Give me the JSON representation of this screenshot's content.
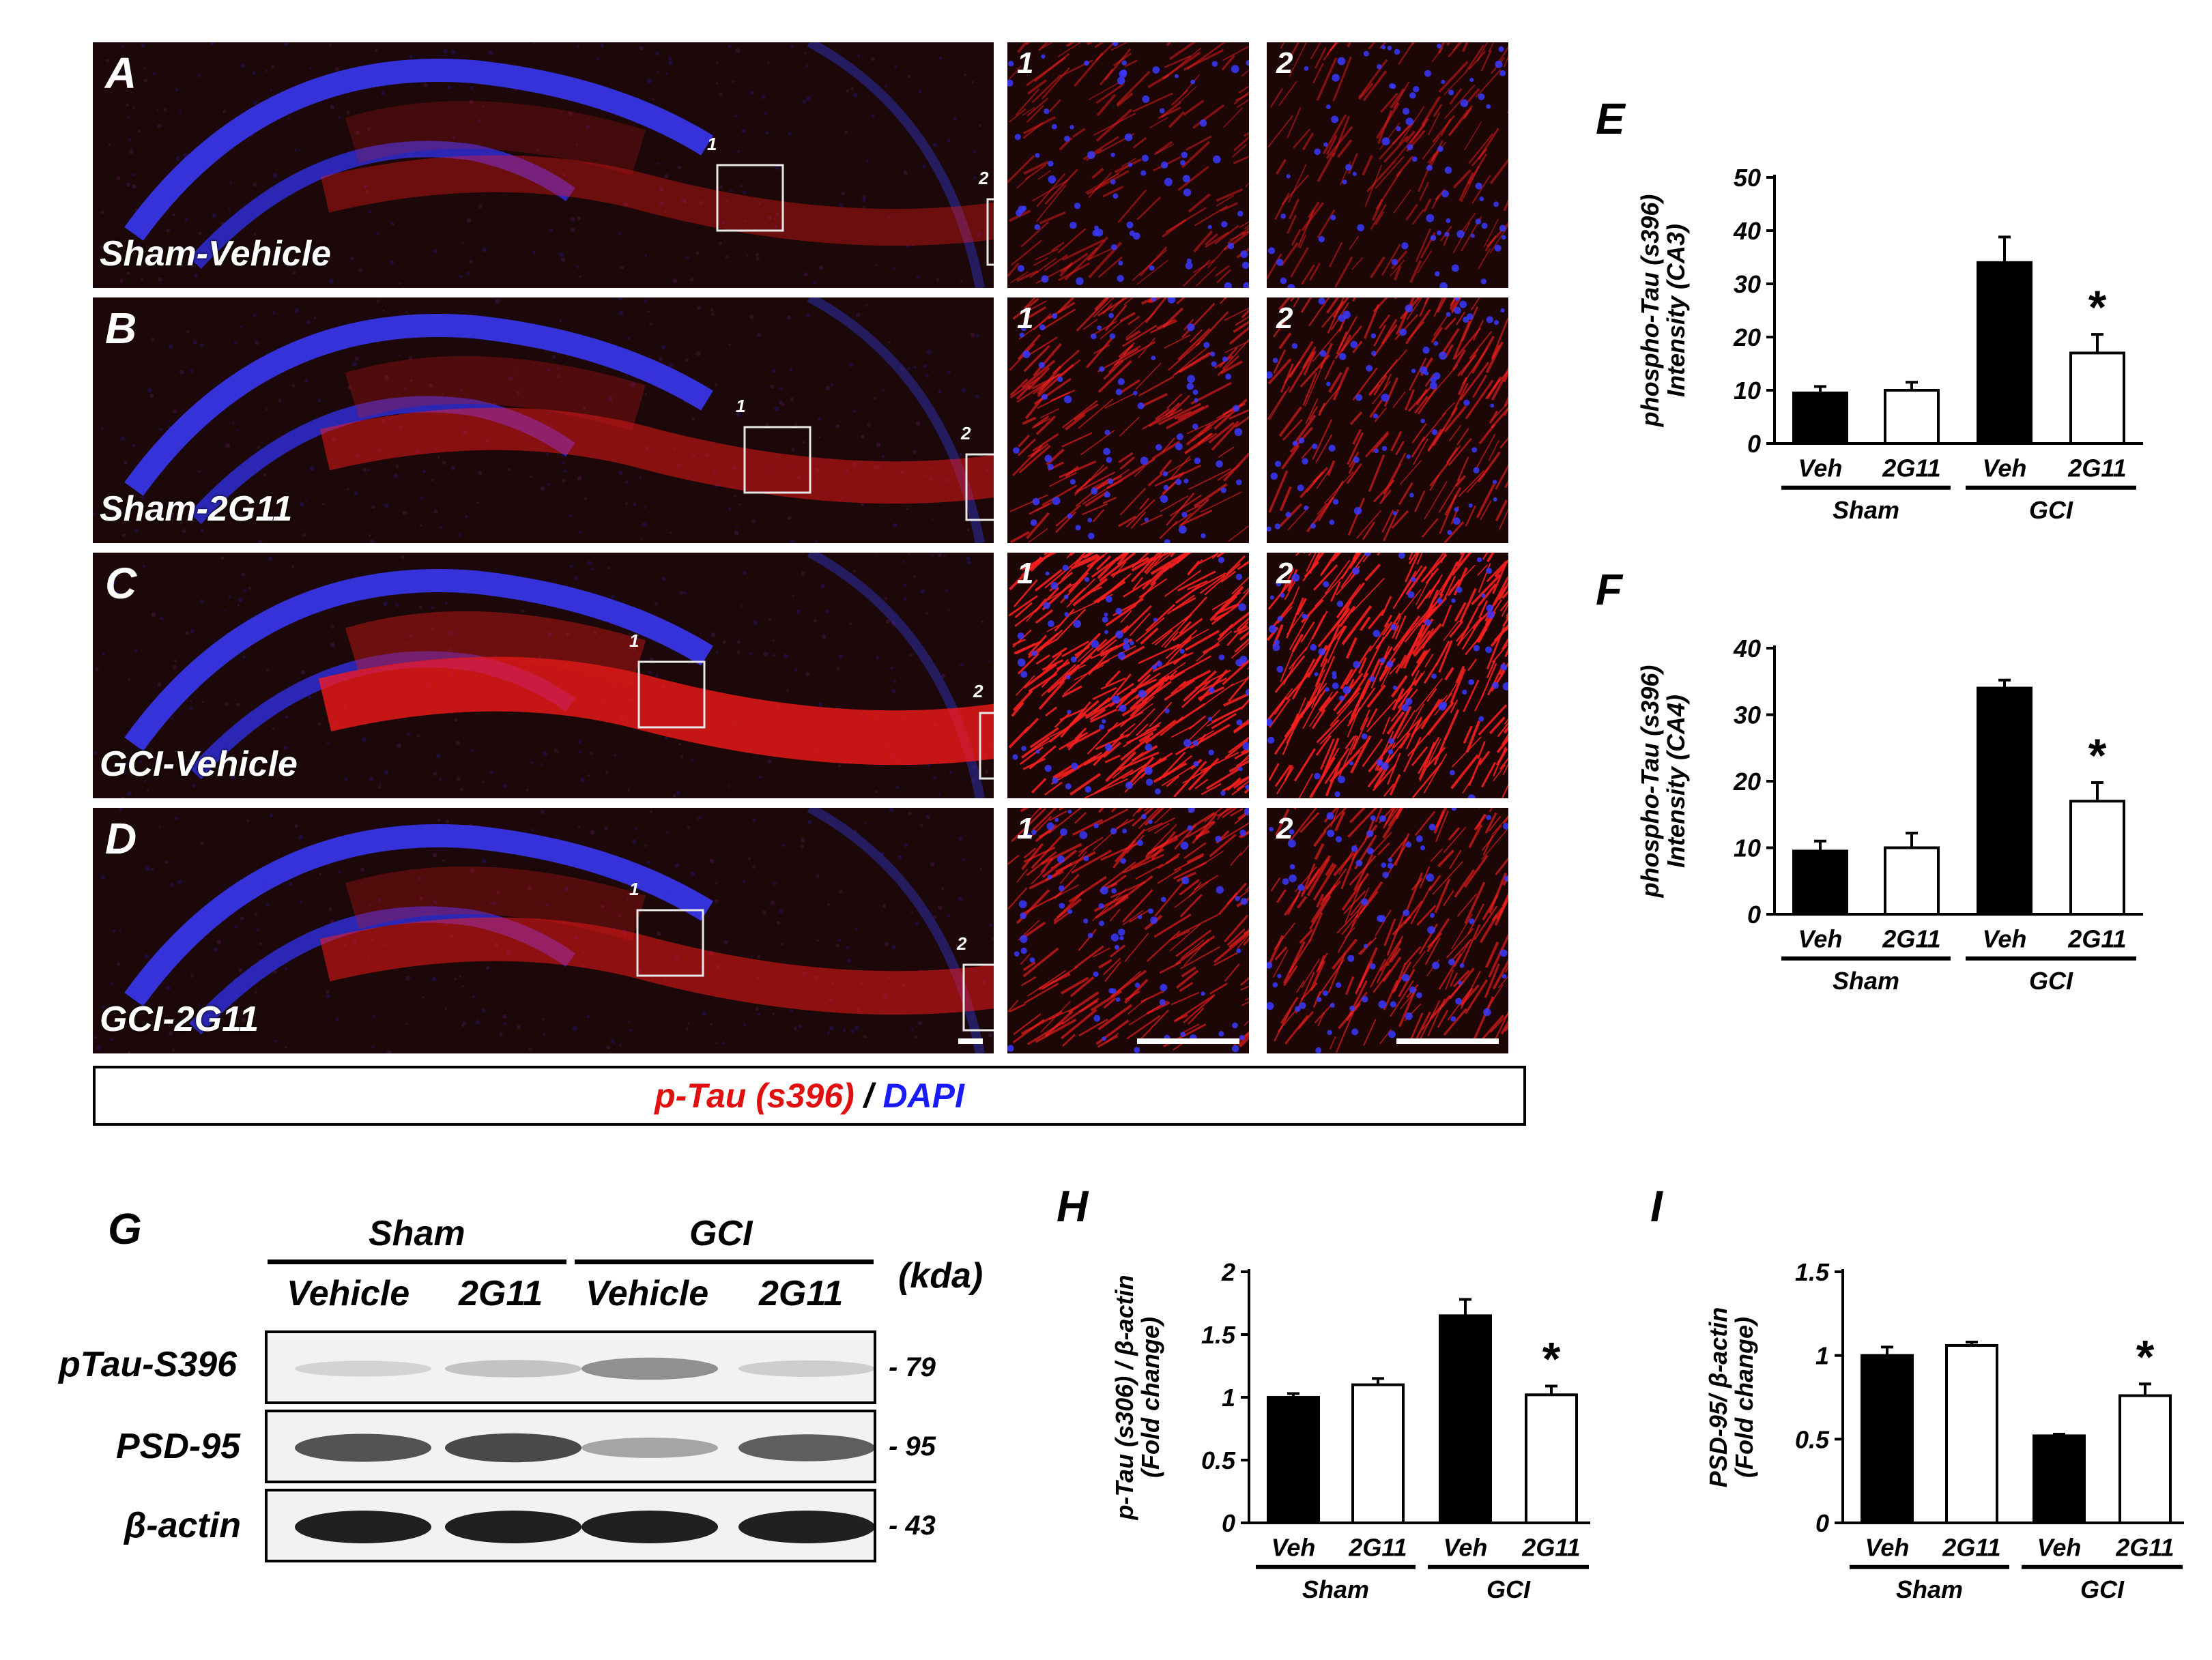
{
  "micrographs": {
    "rows": [
      {
        "letter": "A",
        "condition": "Sham-Vehicle",
        "box1": "1",
        "box2": "2",
        "intensity": 0.35
      },
      {
        "letter": "B",
        "condition": "Sham-2G11",
        "box1": "1",
        "box2": "2",
        "intensity": 0.55
      },
      {
        "letter": "C",
        "condition": "GCI-Vehicle",
        "box1": "1",
        "box2": "2",
        "intensity": 1.0
      },
      {
        "letter": "D",
        "condition": "GCI-2G11",
        "box1": "1",
        "box2": "2",
        "intensity": 0.6
      }
    ],
    "inset_labels": [
      "1",
      "2"
    ],
    "legend": {
      "ptau": "p-Tau (s396)",
      "sep": " / ",
      "dapi": "DAPI"
    },
    "colors": {
      "ptau": "#ff1010",
      "dapi": "#2020ff"
    }
  },
  "western": {
    "letter": "G",
    "groups": [
      "Sham",
      "GCI"
    ],
    "lanes": [
      "Vehicle",
      "2G11",
      "Vehicle",
      "2G11"
    ],
    "unit_label": "(kda)",
    "rows": [
      {
        "label": "pTau-S396",
        "kda": "- 79",
        "band_intensity": [
          0.12,
          0.2,
          0.45,
          0.15
        ]
      },
      {
        "label": "PSD-95",
        "kda": "- 95",
        "band_intensity": [
          0.75,
          0.8,
          0.35,
          0.7
        ]
      },
      {
        "label": "β-actin",
        "kda": "- 43",
        "band_intensity": [
          1.0,
          1.0,
          1.0,
          1.0
        ]
      }
    ]
  },
  "chart_data": [
    {
      "panel": "E",
      "type": "bar",
      "categories": [
        "Veh",
        "2G11",
        "Veh",
        "2G11"
      ],
      "groups": [
        "Sham",
        "GCI"
      ],
      "values": [
        9.5,
        10,
        34,
        17
      ],
      "errors": [
        1.2,
        1.5,
        4.8,
        3.5
      ],
      "fills": [
        "#000000",
        "#ffffff",
        "#000000",
        "#ffffff"
      ],
      "ylabel": [
        "phospho-Tau (s396)",
        "Intensity (CA3)"
      ],
      "ylim": [
        0,
        50
      ],
      "yticks": [
        0,
        10,
        20,
        30,
        40,
        50
      ],
      "ytick_labels": [
        "0",
        "10",
        "20",
        "30",
        "40",
        "50"
      ],
      "star_index": 3,
      "star": "*"
    },
    {
      "panel": "F",
      "type": "bar",
      "categories": [
        "Veh",
        "2G11",
        "Veh",
        "2G11"
      ],
      "groups": [
        "Sham",
        "GCI"
      ],
      "values": [
        9.5,
        10,
        34,
        17
      ],
      "errors": [
        1.5,
        2.2,
        1.2,
        2.8
      ],
      "fills": [
        "#000000",
        "#ffffff",
        "#000000",
        "#ffffff"
      ],
      "ylabel": [
        "phospho-Tau (s396)",
        "Intensity (CA4)"
      ],
      "ylim": [
        0,
        40
      ],
      "yticks": [
        0,
        10,
        20,
        30,
        40
      ],
      "ytick_labels": [
        "0",
        "10",
        "20",
        "30",
        "40"
      ],
      "star_index": 3,
      "star": "*"
    },
    {
      "panel": "H",
      "type": "bar",
      "categories": [
        "Veh",
        "2G11",
        "Veh",
        "2G11"
      ],
      "groups": [
        "Sham",
        "GCI"
      ],
      "values": [
        1.0,
        1.1,
        1.65,
        1.02
      ],
      "errors": [
        0.03,
        0.05,
        0.13,
        0.07
      ],
      "fills": [
        "#000000",
        "#ffffff",
        "#000000",
        "#ffffff"
      ],
      "ylabel": [
        "p-Tau (s306) / β-actin",
        "(Fold change)"
      ],
      "ylim": [
        0,
        2
      ],
      "yticks": [
        0,
        0.5,
        1,
        1.5,
        2
      ],
      "ytick_labels": [
        "0",
        "0.5",
        "1",
        "1.5",
        "2"
      ],
      "star_index": 3,
      "star": "*"
    },
    {
      "panel": "I",
      "type": "bar",
      "categories": [
        "Veh",
        "2G11",
        "Veh",
        "2G11"
      ],
      "groups": [
        "Sham",
        "GCI"
      ],
      "values": [
        1.0,
        1.06,
        0.52,
        0.76
      ],
      "errors": [
        0.05,
        0.02,
        0.01,
        0.07
      ],
      "fills": [
        "#000000",
        "#ffffff",
        "#000000",
        "#ffffff"
      ],
      "ylabel": [
        "PSD-95/ β-actin",
        "(Fold change)"
      ],
      "ylim": [
        0,
        1.5
      ],
      "yticks": [
        0,
        0.5,
        1,
        1.5
      ],
      "ytick_labels": [
        "0",
        "0.5",
        "1",
        "1.5"
      ],
      "star_index": 3,
      "star": "*"
    }
  ]
}
